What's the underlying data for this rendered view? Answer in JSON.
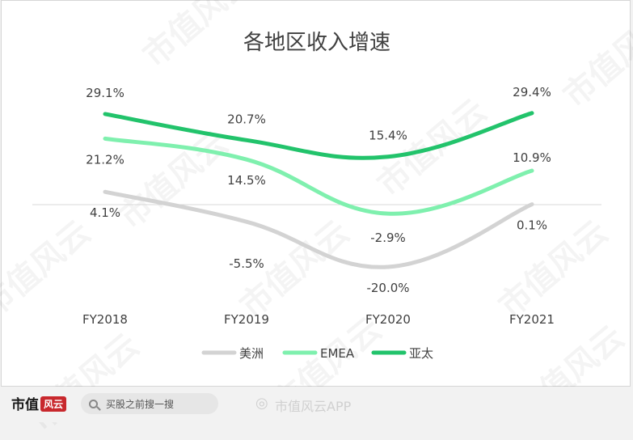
{
  "chart_data": {
    "type": "line",
    "title": "各地区收入增速",
    "categories": [
      "FY2018",
      "FY2019",
      "FY2020",
      "FY2021"
    ],
    "series": [
      {
        "name": "美洲",
        "color": "#d3d3d3",
        "values": [
          4.1,
          -5.5,
          -20.0,
          0.1
        ],
        "labels": [
          "4.1%",
          "-5.5%",
          "-20.0%",
          "0.1%"
        ]
      },
      {
        "name": "EMEA",
        "color": "#7ff0ae",
        "values": [
          21.2,
          14.5,
          -2.9,
          10.9
        ],
        "labels": [
          "21.2%",
          "14.5%",
          "-2.9%",
          "10.9%"
        ]
      },
      {
        "name": "亚太",
        "color": "#22c36b",
        "values": [
          29.1,
          20.7,
          15.4,
          29.4
        ],
        "labels": [
          "29.1%",
          "20.7%",
          "15.4%",
          "29.4%"
        ]
      }
    ],
    "xlabel": "",
    "ylabel": "",
    "ylim": [
      -25,
      35
    ],
    "grid": false,
    "legend": "bottom"
  },
  "watermark": "市值风云",
  "footer": {
    "brand": "市值",
    "brand_mark": "风云",
    "search_placeholder": "买股之前搜一搜",
    "weibo_icon": "weibo-icon",
    "weibo_text": "市值风云APP"
  }
}
